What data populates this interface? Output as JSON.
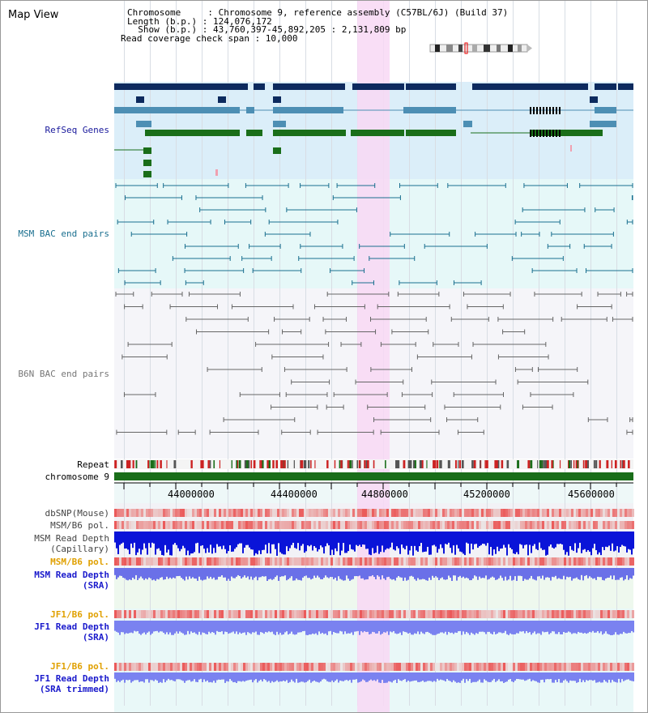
{
  "map_title": "Map View",
  "info": {
    "chromosome_line": "Chromosome     : Chromosome 9, reference assembly (C57BL/6J) (Build 37)",
    "length_line": "Length (b.p.) : 124,076,172",
    "show_line": "  Show (b.p.) : 43,760,397-45,892,205 : 2,131,809 bp",
    "coverage_line": "Read coverage check span : 10,000"
  },
  "tracks": {
    "refseq": "RefSeq Genes",
    "msm_bac": "MSM BAC end pairs",
    "b6n_bac": "B6N BAC end pairs",
    "repeat": "Repeat",
    "chromosome": "chromosome 9",
    "dbsnp": "dbSNP(Mouse)",
    "msm_b6_pol_1": "MSM/B6 pol.",
    "msm_read_depth_cap": "MSM Read Depth\n(Capillary)",
    "msm_b6_pol_2": "MSM/B6 pol.",
    "msm_read_depth_sra": "MSM Read Depth\n(SRA)",
    "jf1_b6_pol_1": "JF1/B6 pol.",
    "jf1_read_depth_sra": "JF1 Read Depth\n(SRA)",
    "jf1_b6_pol_2": "JF1/B6 pol.",
    "jf1_read_depth_trim": "JF1 Read Depth\n(SRA trimmed)"
  },
  "axis_ticks": [
    "44000000",
    "44400000",
    "44800000",
    "45200000",
    "45600000"
  ],
  "colors": {
    "refseq_label": "#1a1a9c",
    "msm_label": "#1a6f8f",
    "b6n_label": "#777777",
    "orange_label": "#e0a000",
    "blue_label": "#1a1acc",
    "highlight": "#f8d8f4",
    "dark_navy": "#0d2a5e",
    "steel": "#4d8fb4",
    "green": "#1a6e1a"
  }
}
